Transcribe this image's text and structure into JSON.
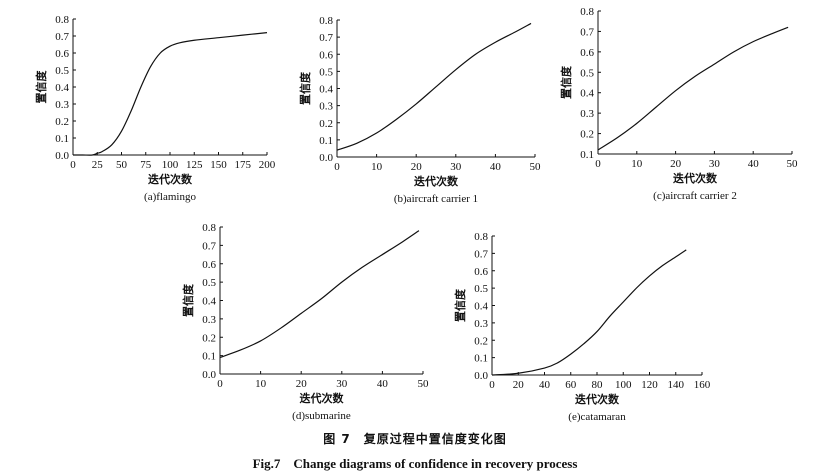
{
  "figure": {
    "caption_cn": "图 7　复原过程中置信度变化图",
    "caption_en": "Fig.7　Change diagrams of confidence in recovery process"
  },
  "chart_data": [
    {
      "type": "line",
      "caption": "(a)flamingo",
      "xlabel": "迭代次数",
      "ylabel": "置信度",
      "xlim": [
        0,
        200
      ],
      "ylim": [
        0,
        0.8
      ],
      "xticks": [
        0,
        25,
        50,
        75,
        100,
        125,
        150,
        175,
        200
      ],
      "yticks": [
        0.0,
        0.1,
        0.2,
        0.3,
        0.4,
        0.5,
        0.6,
        0.7,
        0.8
      ],
      "ytick_labels": [
        "0.0",
        "0.1",
        "0.2",
        "0.3",
        "0.4",
        "0.5",
        "0.6",
        "0.7",
        "0.8"
      ],
      "x": [
        0,
        10,
        20,
        25,
        30,
        40,
        50,
        60,
        70,
        80,
        90,
        100,
        110,
        125,
        150,
        175,
        200
      ],
      "y": [
        0.0,
        0.0,
        0.0,
        0.01,
        0.02,
        0.06,
        0.14,
        0.26,
        0.4,
        0.52,
        0.6,
        0.64,
        0.66,
        0.675,
        0.69,
        0.705,
        0.72
      ]
    },
    {
      "type": "line",
      "caption": "(b)aircraft carrier 1",
      "xlabel": "迭代次数",
      "ylabel": "置信度",
      "xlim": [
        0,
        50
      ],
      "ylim": [
        0,
        0.8
      ],
      "xticks": [
        0,
        10,
        20,
        30,
        40,
        50
      ],
      "yticks": [
        0.0,
        0.1,
        0.2,
        0.3,
        0.4,
        0.5,
        0.6,
        0.7,
        0.8
      ],
      "ytick_labels": [
        "0.0",
        "0.1",
        "0.2",
        "0.3",
        "0.4",
        "0.5",
        "0.6",
        "0.7",
        "0.8"
      ],
      "x": [
        0,
        5,
        10,
        15,
        20,
        25,
        30,
        35,
        40,
        45,
        49
      ],
      "y": [
        0.04,
        0.08,
        0.14,
        0.22,
        0.31,
        0.41,
        0.51,
        0.6,
        0.67,
        0.73,
        0.78
      ]
    },
    {
      "type": "line",
      "caption": "(c)aircraft carrier 2",
      "xlabel": "迭代次数",
      "ylabel": "置信度",
      "xlim": [
        0,
        50
      ],
      "ylim": [
        0.1,
        0.8
      ],
      "xticks": [
        0,
        10,
        20,
        30,
        40,
        50
      ],
      "yticks": [
        0.1,
        0.2,
        0.3,
        0.4,
        0.5,
        0.6,
        0.7,
        0.8
      ],
      "ytick_labels": [
        "0.1",
        "0.2",
        "0.3",
        "0.4",
        "0.5",
        "0.6",
        "0.7",
        "0.8"
      ],
      "x": [
        0,
        5,
        10,
        15,
        20,
        25,
        30,
        35,
        40,
        45,
        49
      ],
      "y": [
        0.12,
        0.18,
        0.25,
        0.33,
        0.41,
        0.48,
        0.54,
        0.6,
        0.65,
        0.69,
        0.72
      ]
    },
    {
      "type": "line",
      "caption": "(d)submarine",
      "xlabel": "迭代次数",
      "ylabel": "置信度",
      "xlim": [
        0,
        50
      ],
      "ylim": [
        0,
        0.8
      ],
      "xticks": [
        0,
        10,
        20,
        30,
        40,
        50
      ],
      "yticks": [
        0.0,
        0.1,
        0.2,
        0.3,
        0.4,
        0.5,
        0.6,
        0.7,
        0.8
      ],
      "ytick_labels": [
        "0.0",
        "0.1",
        "0.2",
        "0.3",
        "0.4",
        "0.5",
        "0.6",
        "0.7",
        "0.8"
      ],
      "x": [
        0,
        5,
        10,
        15,
        20,
        25,
        30,
        35,
        40,
        45,
        49
      ],
      "y": [
        0.09,
        0.13,
        0.18,
        0.25,
        0.33,
        0.41,
        0.5,
        0.58,
        0.65,
        0.72,
        0.78
      ]
    },
    {
      "type": "line",
      "caption": "(e)catamaran",
      "xlabel": "迭代次数",
      "ylabel": "置信度",
      "xlim": [
        0,
        160
      ],
      "ylim": [
        0,
        0.8
      ],
      "xticks": [
        0,
        20,
        40,
        60,
        80,
        100,
        120,
        140,
        160
      ],
      "yticks": [
        0.0,
        0.1,
        0.2,
        0.3,
        0.4,
        0.5,
        0.6,
        0.7,
        0.8
      ],
      "ytick_labels": [
        "0.0",
        "0.1",
        "0.2",
        "0.3",
        "0.4",
        "0.5",
        "0.6",
        "0.7",
        "0.8"
      ],
      "x": [
        0,
        20,
        40,
        50,
        60,
        70,
        80,
        90,
        100,
        110,
        120,
        130,
        140,
        148
      ],
      "y": [
        0.0,
        0.01,
        0.04,
        0.07,
        0.12,
        0.18,
        0.25,
        0.34,
        0.42,
        0.5,
        0.57,
        0.63,
        0.68,
        0.72
      ]
    }
  ]
}
